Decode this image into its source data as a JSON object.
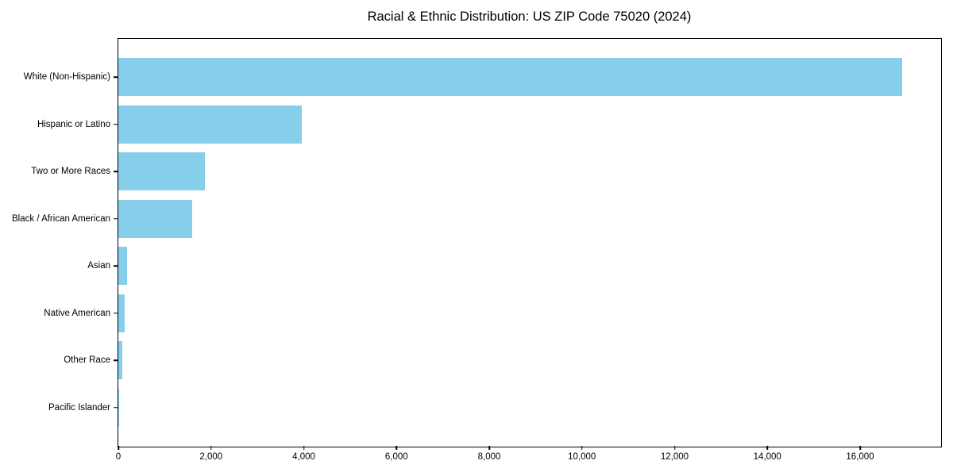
{
  "chart_data": {
    "type": "bar",
    "orientation": "horizontal",
    "title": "Racial & Ethnic Distribution: US ZIP Code 75020 (2024)",
    "categories": [
      "White (Non-Hispanic)",
      "Hispanic or Latino",
      "Two or More Races",
      "Black / African American",
      "Asian",
      "Native American",
      "Other Race",
      "Pacific Islander"
    ],
    "values": [
      16900,
      3950,
      1870,
      1600,
      195,
      130,
      90,
      10
    ],
    "xlabel": "",
    "ylabel": "",
    "xlim": [
      0,
      17730
    ],
    "xticks": [
      0,
      2000,
      4000,
      6000,
      8000,
      10000,
      12000,
      14000,
      16000
    ],
    "xtick_labels": [
      "0",
      "2,000",
      "4,000",
      "6,000",
      "8,000",
      "10,000",
      "12,000",
      "14,000",
      "16,000"
    ],
    "grid": false,
    "legend_position": "none",
    "bar_color": "#87CEEB",
    "axis_color": "#000000",
    "text_color": "#000000",
    "background_color": "#FFFFFF"
  }
}
